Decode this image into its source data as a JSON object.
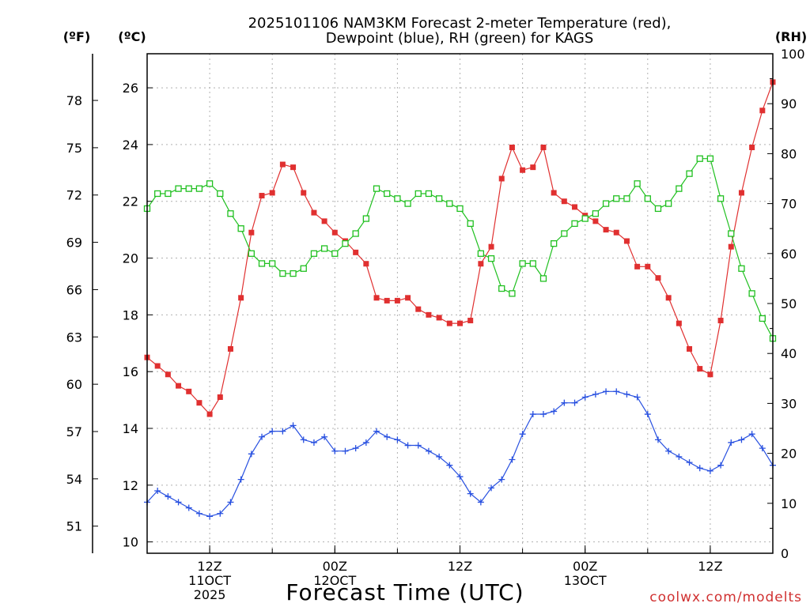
{
  "chart_data": {
    "type": "line",
    "title": [
      "2025101106 NAM3KM Forecast 2-meter Temperature (red),",
      "Dewpoint (blue), RH (green) for KAGS"
    ],
    "units": {
      "fahrenheit": "(ºF)",
      "celsius": "(ºC)",
      "rh": "(RH)"
    },
    "xlabel": "Forecast Time (UTC)",
    "watermark": "coolwx.com/modelts",
    "x_start_hour": 6,
    "x_end_hour": 66,
    "xlim": [
      6,
      66
    ],
    "ylim_c": [
      9.6,
      27.2
    ],
    "ylim_rh": [
      0,
      100
    ],
    "grid": true,
    "x_ticks": [
      {
        "hour": 12,
        "lines": [
          "12Z",
          "11OCT",
          "2025"
        ]
      },
      {
        "hour": 24,
        "lines": [
          "00Z",
          "12OCT"
        ]
      },
      {
        "hour": 36,
        "lines": [
          "12Z"
        ]
      },
      {
        "hour": 48,
        "lines": [
          "00Z",
          "13OCT"
        ]
      },
      {
        "hour": 60,
        "lines": [
          "12Z"
        ]
      }
    ],
    "y_ticks_c": [
      "10",
      "12",
      "14",
      "16",
      "18",
      "20",
      "22",
      "24",
      "26"
    ],
    "y_ticks_f": [
      "51",
      "54",
      "57",
      "60",
      "63",
      "66",
      "69",
      "72",
      "75",
      "78"
    ],
    "y_ticks_rh": [
      "0",
      "10",
      "20",
      "30",
      "40",
      "50",
      "60",
      "70",
      "80",
      "90",
      "100"
    ],
    "series": [
      {
        "name": "2-meter Temperature",
        "unit": "C",
        "color": "#e03030",
        "marker": "filled-square",
        "values": [
          16.5,
          16.2,
          15.9,
          15.5,
          15.3,
          14.9,
          14.5,
          15.1,
          16.8,
          18.6,
          20.9,
          22.2,
          22.3,
          23.3,
          23.2,
          22.3,
          21.6,
          21.3,
          20.9,
          20.6,
          20.2,
          19.8,
          18.6,
          18.5,
          18.5,
          18.6,
          18.2,
          18.0,
          17.9,
          17.7,
          17.7,
          17.8,
          19.8,
          20.4,
          22.8,
          23.9,
          23.1,
          23.2,
          23.9,
          22.3,
          22.0,
          21.8,
          21.5,
          21.3,
          21.0,
          20.9,
          20.6,
          19.7,
          19.7,
          19.3,
          18.6,
          17.7,
          16.8,
          16.1,
          15.9,
          17.8,
          20.4,
          22.3,
          23.9,
          25.2,
          26.2
        ]
      },
      {
        "name": "Dewpoint",
        "unit": "C",
        "color": "#2850e0",
        "marker": "plus",
        "values": [
          11.4,
          11.8,
          11.6,
          11.4,
          11.2,
          11.0,
          10.9,
          11.0,
          11.4,
          12.2,
          13.1,
          13.7,
          13.9,
          13.9,
          14.1,
          13.6,
          13.5,
          13.7,
          13.2,
          13.2,
          13.3,
          13.5,
          13.9,
          13.7,
          13.6,
          13.4,
          13.4,
          13.2,
          13.0,
          12.7,
          12.3,
          11.7,
          11.4,
          11.9,
          12.2,
          12.9,
          13.8,
          14.5,
          14.5,
          14.6,
          14.9,
          14.9,
          15.1,
          15.2,
          15.3,
          15.3,
          15.2,
          15.1,
          14.5,
          13.6,
          13.2,
          13.0,
          12.8,
          12.6,
          12.5,
          12.7,
          13.5,
          13.6,
          13.8,
          13.3,
          12.7
        ]
      },
      {
        "name": "RH",
        "unit": "%",
        "color": "#20c020",
        "marker": "open-square",
        "values": [
          69,
          72,
          72,
          73,
          73,
          73,
          74,
          72,
          68,
          65,
          60,
          58,
          58,
          56,
          56,
          57,
          60,
          61,
          60,
          62,
          64,
          67,
          73,
          72,
          71,
          70,
          72,
          72,
          71,
          70,
          69,
          66,
          60,
          59,
          53,
          52,
          58,
          58,
          55,
          62,
          64,
          66,
          67,
          68,
          70,
          71,
          71,
          74,
          71,
          69,
          70,
          73,
          76,
          79,
          79,
          71,
          64,
          57,
          52,
          47,
          43
        ]
      }
    ]
  }
}
